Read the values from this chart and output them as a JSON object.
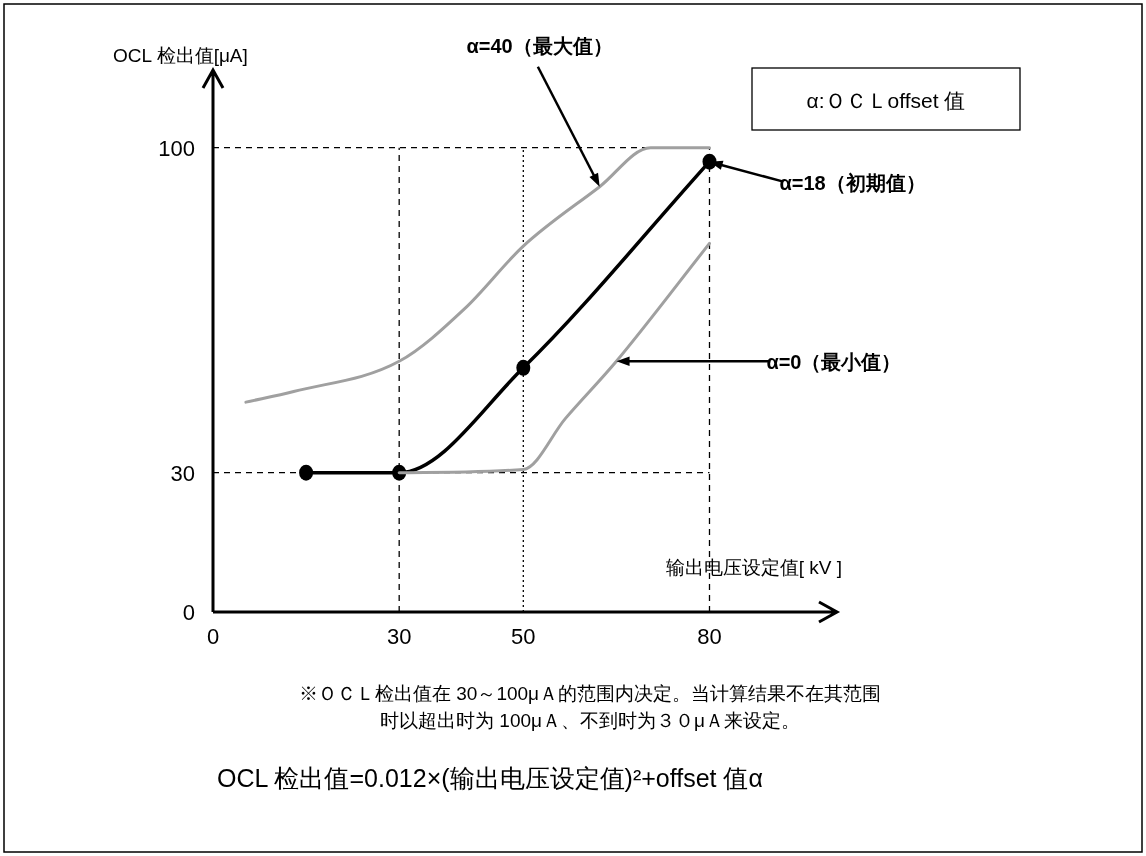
{
  "chart_data": {
    "type": "line",
    "xlabel": "输出电压设定值[ kV ]",
    "ylabel": "OCL 检出值[μA]",
    "xlim": [
      0,
      97
    ],
    "ylim": [
      0,
      112
    ],
    "xticks": [
      0,
      30,
      50,
      80
    ],
    "yticks": [
      0,
      30,
      100
    ],
    "grid": false,
    "series": [
      {
        "color": "#a0a0a0",
        "marker": "none",
        "x": [
          5.3,
          13,
          30,
          40.6,
          50,
          62.3,
          70.5,
          80
        ],
        "values": [
          45.2,
          47.5,
          54,
          65.4,
          78.8,
          91.6,
          100,
          100
        ]
      },
      {
        "color": "#000000",
        "marker": "circle",
        "x": [
          15,
          30,
          50,
          80
        ],
        "values": [
          30,
          30,
          52.6,
          97
        ]
      },
      {
        "color": "#a0a0a0",
        "marker": "none",
        "x": [
          30,
          50,
          56.8,
          65,
          80
        ],
        "values": [
          30,
          30.7,
          41.7,
          54,
          79.4
        ]
      }
    ],
    "ref_lines": [
      {
        "axis": "x",
        "value": 30,
        "line_style": "dashed",
        "color": "#000000"
      },
      {
        "axis": "x",
        "value": 50,
        "line_style": "dotted",
        "color": "#000000"
      },
      {
        "axis": "x",
        "value": 80,
        "line_style": "dashed",
        "color": "#000000"
      },
      {
        "axis": "y",
        "value": 30,
        "line_style": "dashed",
        "color": "#000000"
      },
      {
        "axis": "y",
        "value": 100,
        "line_style": "dashed",
        "color": "#000000"
      }
    ],
    "annotations": [
      {
        "text": "α=40（最大值）",
        "x": 62.3,
        "y": 91.6
      },
      {
        "text": "α=18（初期值）",
        "x": 80,
        "y": 97
      },
      {
        "text": "α=0（最小值）",
        "x": 65,
        "y": 54
      },
      "α:ＯＣＬoffset 值",
      "※ＯＣＬ检出值在 30～100μＡ的范围内决定。当计算结果不在其范围时以超出时为 100μＡ、不到时为３０μＡ来设定。",
      "OCL 检出值=0.012×(输出电压设定值)²+offset 值α"
    ]
  }
}
